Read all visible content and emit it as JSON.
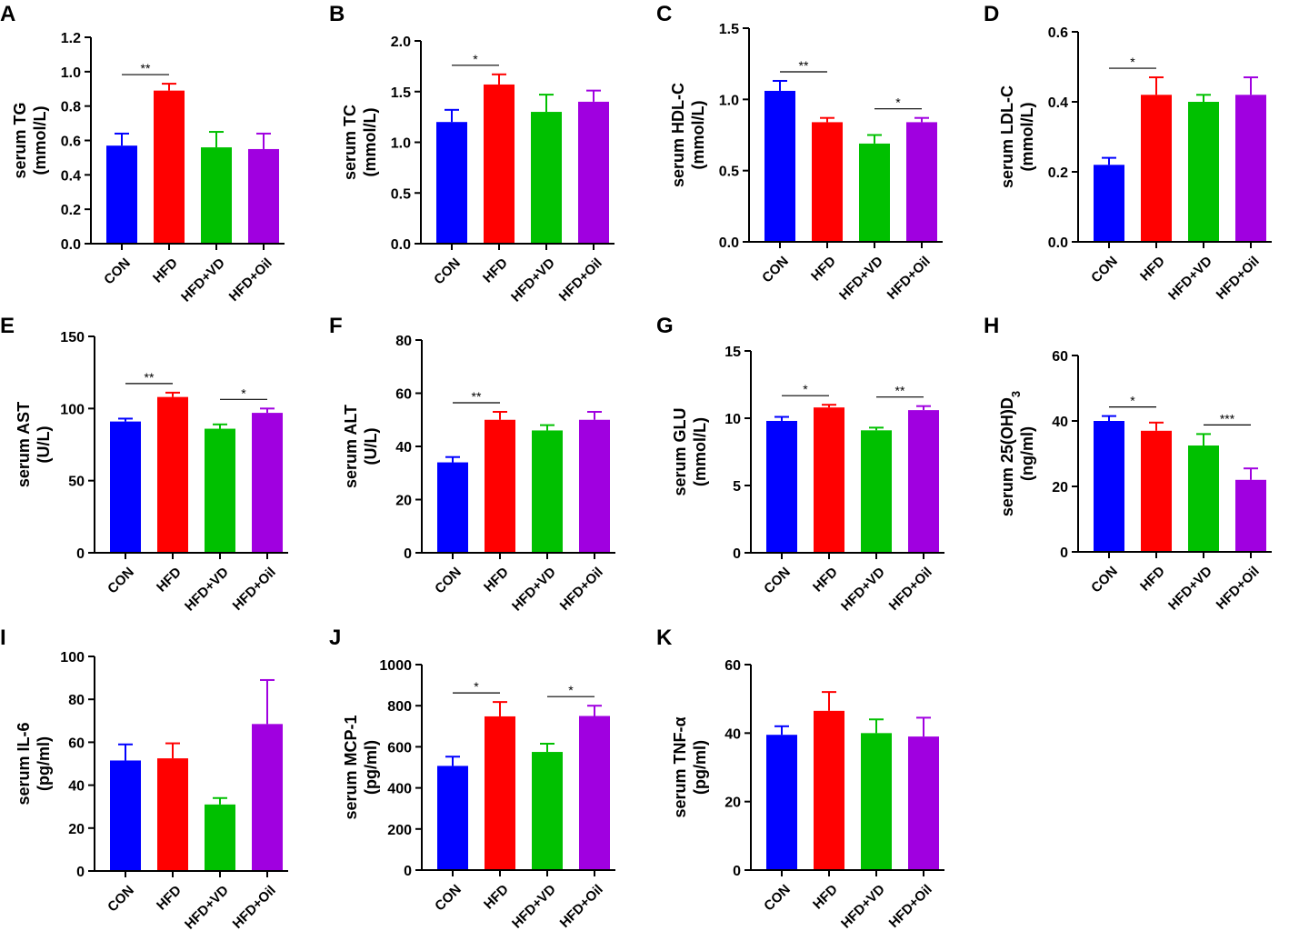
{
  "figure": {
    "categories": [
      "CON",
      "HFD",
      "HFD+VD",
      "HFD+Oil"
    ],
    "colors": [
      "#0000ff",
      "#ff0000",
      "#00c000",
      "#a000e0"
    ]
  },
  "chart_data": [
    {
      "panel": "A",
      "type": "bar",
      "ylabel": [
        "serum TG",
        "(mmol/L)"
      ],
      "ylim": [
        0,
        1.2
      ],
      "ticks": [
        0,
        0.2,
        0.4,
        0.6,
        0.8,
        1.0,
        1.2
      ],
      "tick_labels": [
        "0.0",
        "0.2",
        "0.4",
        "0.6",
        "0.8",
        "1.0",
        "1.2"
      ],
      "values": [
        0.57,
        0.89,
        0.56,
        0.55
      ],
      "errors": [
        0.07,
        0.04,
        0.09,
        0.09
      ],
      "significance": [
        {
          "from": 0,
          "to": 1,
          "label": "**"
        }
      ]
    },
    {
      "panel": "B",
      "type": "bar",
      "ylabel": [
        "serum TC",
        "(mmol/L)"
      ],
      "ylim": [
        0,
        2.0
      ],
      "ticks": [
        0,
        0.5,
        1.0,
        1.5,
        2.0
      ],
      "tick_labels": [
        "0.0",
        "0.5",
        "1.0",
        "1.5",
        "2.0"
      ],
      "values": [
        1.2,
        1.57,
        1.3,
        1.4
      ],
      "errors": [
        0.12,
        0.1,
        0.17,
        0.11
      ],
      "significance": [
        {
          "from": 0,
          "to": 1,
          "label": "*"
        }
      ]
    },
    {
      "panel": "C",
      "type": "bar",
      "ylabel": [
        "serum HDL-C",
        "(mmol/L)"
      ],
      "ylim": [
        0,
        1.5
      ],
      "ticks": [
        0,
        0.5,
        1.0,
        1.5
      ],
      "tick_labels": [
        "0.0",
        "0.5",
        "1.0",
        "1.5"
      ],
      "values": [
        1.06,
        0.84,
        0.69,
        0.84
      ],
      "errors": [
        0.07,
        0.03,
        0.06,
        0.03
      ],
      "significance": [
        {
          "from": 0,
          "to": 1,
          "label": "**"
        },
        {
          "from": 2,
          "to": 3,
          "label": "*"
        }
      ]
    },
    {
      "panel": "D",
      "type": "bar",
      "ylabel": [
        "serum LDL-C",
        "(mmol/L)"
      ],
      "ylim": [
        0,
        0.6
      ],
      "ticks": [
        0,
        0.2,
        0.4,
        0.6
      ],
      "tick_labels": [
        "0.0",
        "0.2",
        "0.4",
        "0.6"
      ],
      "values": [
        0.22,
        0.42,
        0.4,
        0.42
      ],
      "errors": [
        0.02,
        0.05,
        0.02,
        0.05
      ],
      "significance": [
        {
          "from": 0,
          "to": 1,
          "label": "*"
        }
      ]
    },
    {
      "panel": "E",
      "type": "bar",
      "ylabel": [
        "serum AST",
        "(U/L)"
      ],
      "ylim": [
        0,
        150
      ],
      "ticks": [
        0,
        50,
        100,
        150
      ],
      "tick_labels": [
        "0",
        "50",
        "100",
        "150"
      ],
      "values": [
        91,
        108,
        86,
        97
      ],
      "errors": [
        2,
        3,
        3,
        3
      ],
      "significance": [
        {
          "from": 0,
          "to": 1,
          "label": "**"
        },
        {
          "from": 2,
          "to": 3,
          "label": "*"
        }
      ]
    },
    {
      "panel": "F",
      "type": "bar",
      "ylabel": [
        "serum ALT",
        "(U/L)"
      ],
      "ylim": [
        0,
        80
      ],
      "ticks": [
        0,
        20,
        40,
        60,
        80
      ],
      "tick_labels": [
        "0",
        "20",
        "40",
        "60",
        "80"
      ],
      "values": [
        34,
        50,
        46,
        50
      ],
      "errors": [
        2,
        3,
        2,
        3
      ],
      "significance": [
        {
          "from": 0,
          "to": 1,
          "label": "**"
        }
      ]
    },
    {
      "panel": "G",
      "type": "bar",
      "ylabel": [
        "serum GLU",
        "(mmol/L)"
      ],
      "ylim": [
        0,
        15
      ],
      "ticks": [
        0,
        5,
        10,
        15
      ],
      "tick_labels": [
        "0",
        "5",
        "10",
        "15"
      ],
      "values": [
        9.8,
        10.8,
        9.1,
        10.6
      ],
      "errors": [
        0.3,
        0.2,
        0.2,
        0.3
      ],
      "significance": [
        {
          "from": 0,
          "to": 1,
          "label": "*"
        },
        {
          "from": 2,
          "to": 3,
          "label": "**"
        }
      ]
    },
    {
      "panel": "H",
      "type": "bar",
      "ylabel": [
        "serum 25(OH)D",
        "(ng/ml)"
      ],
      "ylabel_subscript": "3",
      "ylim": [
        0,
        60
      ],
      "ticks": [
        0,
        20,
        40,
        60
      ],
      "tick_labels": [
        "0",
        "20",
        "40",
        "60"
      ],
      "values": [
        40,
        37,
        32.5,
        22
      ],
      "errors": [
        1.5,
        2.5,
        3.5,
        3.5
      ],
      "significance": [
        {
          "from": 0,
          "to": 1,
          "label": "*"
        },
        {
          "from": 2,
          "to": 3,
          "label": "***"
        }
      ]
    },
    {
      "panel": "I",
      "type": "bar",
      "ylabel": [
        "serum IL-6",
        "(pg/ml)"
      ],
      "ylim": [
        0,
        100
      ],
      "ticks": [
        0,
        20,
        40,
        60,
        80,
        100
      ],
      "tick_labels": [
        "0",
        "20",
        "40",
        "60",
        "80",
        "100"
      ],
      "values": [
        51.5,
        52.5,
        31,
        68.5
      ],
      "errors": [
        7.5,
        7,
        3,
        20.5
      ],
      "significance": []
    },
    {
      "panel": "J",
      "type": "bar",
      "ylabel": [
        "serum MCP-1",
        "(pg/ml)"
      ],
      "ylim": [
        0,
        1000
      ],
      "ticks": [
        0,
        200,
        400,
        600,
        800,
        1000
      ],
      "tick_labels": [
        "0",
        "200",
        "400",
        "600",
        "800",
        "1000"
      ],
      "values": [
        507,
        748,
        575,
        750
      ],
      "errors": [
        45,
        70,
        40,
        50
      ],
      "significance": [
        {
          "from": 0,
          "to": 1,
          "label": "*"
        },
        {
          "from": 2,
          "to": 3,
          "label": "*"
        }
      ]
    },
    {
      "panel": "K",
      "type": "bar",
      "ylabel": [
        "serum TNF-α",
        "(pg/ml)"
      ],
      "ylim": [
        0,
        60
      ],
      "ticks": [
        0,
        20,
        40,
        60
      ],
      "tick_labels": [
        "0",
        "20",
        "40",
        "60"
      ],
      "values": [
        39.5,
        46.5,
        40,
        39
      ],
      "errors": [
        2.5,
        5.5,
        4,
        5.5
      ],
      "significance": []
    }
  ]
}
